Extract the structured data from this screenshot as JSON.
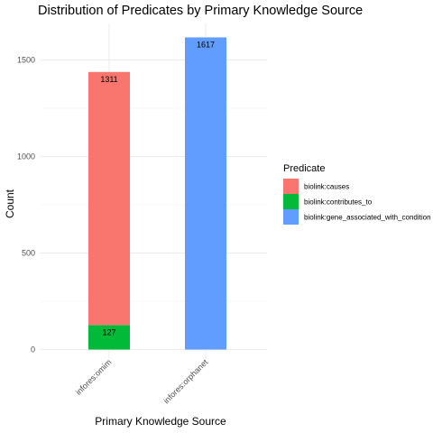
{
  "chart_data": {
    "type": "bar",
    "stacked": true,
    "title": "Distribution of Predicates by Primary Knowledge Source",
    "xlabel": "Primary Knowledge Source",
    "ylabel": "Count",
    "categories": [
      "infores:omim",
      "infores:orphanet"
    ],
    "ylim": [
      0,
      1700
    ],
    "yticks": [
      0,
      500,
      1000,
      1500
    ],
    "grid": true,
    "legend": {
      "title": "Predicate",
      "position": "right"
    },
    "series": [
      {
        "name": "biolink:causes",
        "color": "#F8766D",
        "values": [
          1311,
          0
        ]
      },
      {
        "name": "biolink:contributes_to",
        "color": "#00BA38",
        "values": [
          127,
          0
        ]
      },
      {
        "name": "biolink:gene_associated_with_condition",
        "color": "#619CFF",
        "values": [
          0,
          1617
        ]
      }
    ]
  }
}
